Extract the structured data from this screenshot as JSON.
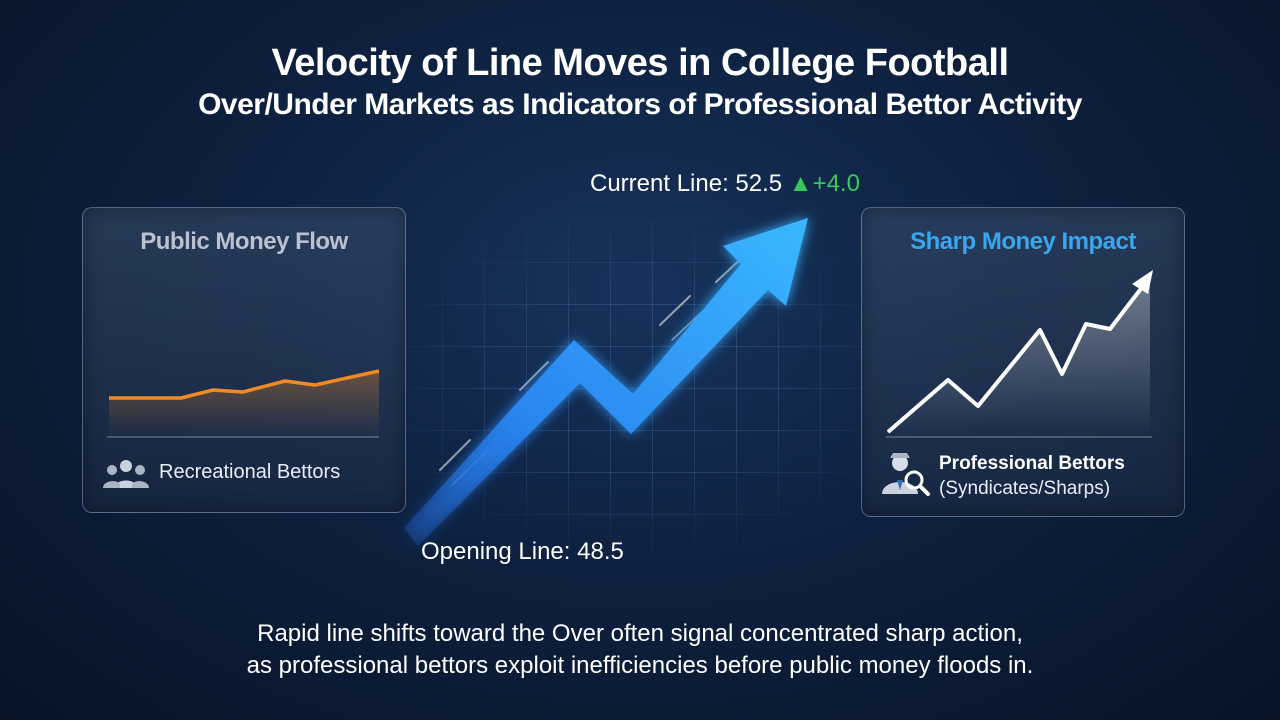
{
  "header": {
    "title": "Velocity of Line Moves in College Football",
    "subtitle": "Over/Under Markets as Indicators of Professional Bettor Activity"
  },
  "left_panel": {
    "title": "Public Money Flow",
    "caption": "Recreational Bettors",
    "icon": "people-group-icon",
    "line_color": "#f08a24"
  },
  "right_panel": {
    "title": "Sharp Money Impact",
    "caption_bold": "Professional Bettors",
    "caption_sub": "(Syndicates/Sharps)",
    "icon": "detective-magnifier-icon",
    "title_color": "#3aa6f0"
  },
  "line_move": {
    "current_label": "Current Line: 52.5",
    "delta_symbol": "▲",
    "delta_value": "+4.0",
    "opening_label": "Opening Line: 48.5",
    "delta_color": "#38c95a",
    "arrow_color": "#2f9bff"
  },
  "footer": {
    "line1": "Rapid line shifts toward the Over often signal concentrated sharp action,",
    "line2": "as professional bettors exploit inefficiencies before public money floods in."
  }
}
